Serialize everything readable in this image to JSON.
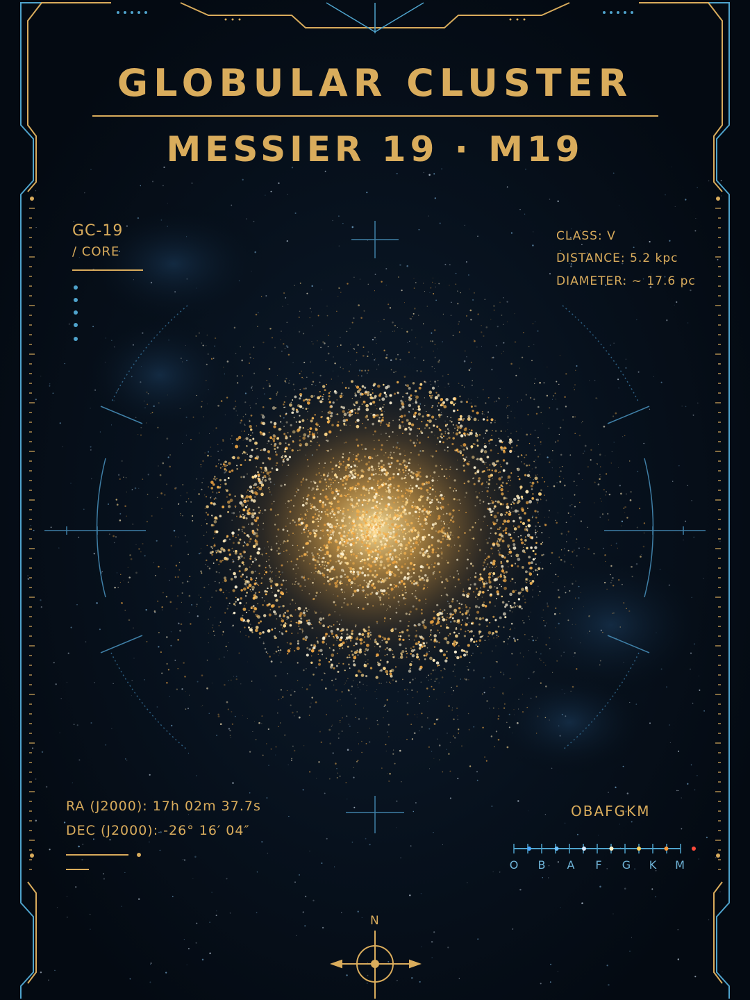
{
  "header": {
    "title": "GLOBULAR CLUSTER",
    "subtitle": "MESSIER 19 · M19"
  },
  "id_panel": {
    "code": "GC-19",
    "sub": "/ CORE"
  },
  "stats": {
    "class": "CLASS:  V",
    "distance": "DISTANCE:  5.2 kpc",
    "diameter": "DIAMETER: ~ 17.6 pc"
  },
  "coordinates": {
    "ra": "RA (J2000): 17h 02m 37.7s",
    "dec": "DEC (J2000): -26° 16′ 04″"
  },
  "spectral": {
    "heading": "OBAFGKM",
    "labels": [
      "O",
      "B",
      "A",
      "F",
      "G",
      "K",
      "M"
    ],
    "colors": [
      "#4aa8ff",
      "#6ec3ff",
      "#d8eaff",
      "#fff3c8",
      "#ffd35a",
      "#ff9a3a",
      "#ff4a3a"
    ]
  },
  "compass": {
    "north": "N"
  },
  "colors": {
    "gold": "#d9ac5c",
    "cyan": "#4fa3cc",
    "background": "#040a12"
  }
}
